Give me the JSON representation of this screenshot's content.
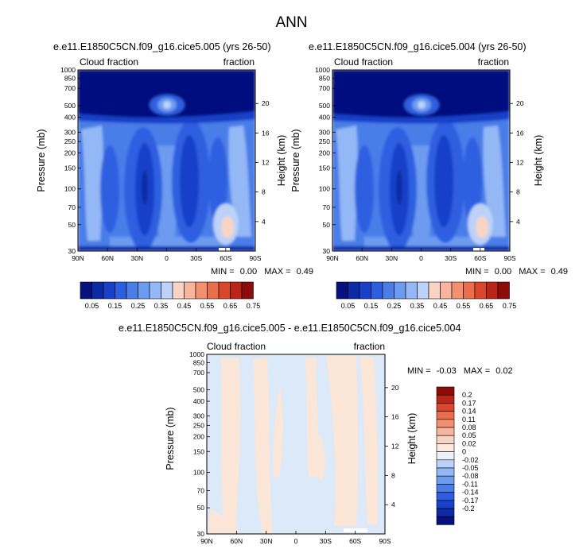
{
  "page_title": "ANN",
  "panel1": {
    "title": "e.e11.E1850C5CN.f09_g16.cice5.005 (yrs 26-50)",
    "left_label": "Cloud fraction",
    "right_label": "fraction",
    "y_axis_label": "Pressure (mb)",
    "y2_axis_label": "Height (km)",
    "min_label": "MIN =",
    "min_value": "0.00",
    "max_label": "MAX =",
    "max_value": "0.49"
  },
  "panel2": {
    "title": "e.e11.E1850C5CN.f09_g16.cice5.004 (yrs 26-50)",
    "left_label": "Cloud fraction",
    "right_label": "fraction",
    "y_axis_label": "Pressure (mb)",
    "y2_axis_label": "Height (km)",
    "min_label": "MIN =",
    "min_value": "0.00",
    "max_label": "MAX =",
    "max_value": "0.49"
  },
  "panel3": {
    "title": "e.e11.E1850C5CN.f09_g16.cice5.005 - e.e11.E1850C5CN.f09_g16.cice5.004",
    "left_label": "Cloud fraction",
    "right_label": "fraction",
    "y_axis_label": "Pressure (mb)",
    "y2_axis_label": "Height (km)",
    "min_label": "MIN =",
    "min_value": "-0.03",
    "max_label": "MAX =",
    "max_value": "0.02"
  },
  "chart_data": [
    {
      "type": "heatmap",
      "panel": "panel1",
      "title": "e.e11.E1850C5CN.f09_g16.cice5.005 (yrs 26-50)",
      "xlabel": "",
      "ylabel": "Pressure (mb)",
      "y2label": "Height (km)",
      "x_ticks": [
        "90N",
        "60N",
        "30N",
        "0",
        "30S",
        "60S",
        "90S"
      ],
      "x_values": [
        90,
        60,
        30,
        0,
        -30,
        -60,
        -90
      ],
      "y_ticks": [
        "30",
        "50",
        "70",
        "100",
        "150",
        "200",
        "250",
        "300",
        "400",
        "500",
        "700",
        "850",
        "1000"
      ],
      "y_values": [
        30,
        50,
        70,
        100,
        150,
        200,
        250,
        300,
        400,
        500,
        700,
        850,
        1000
      ],
      "y2_ticks": [
        "20",
        "16",
        "12",
        "8",
        "4"
      ],
      "y2_values_km": [
        20,
        16,
        12,
        8,
        4
      ],
      "ylim": [
        1000,
        30
      ],
      "min": 0.0,
      "max": 0.49,
      "colorbar_labels": [
        "0.05",
        "0.15",
        "0.25",
        "0.35",
        "0.45",
        "0.55",
        "0.65",
        "0.75"
      ],
      "levels": [
        0.05,
        0.1,
        0.15,
        0.2,
        0.25,
        0.3,
        0.35,
        0.4,
        0.45,
        0.5,
        0.55,
        0.6,
        0.65,
        0.7,
        0.75
      ]
    },
    {
      "type": "heatmap",
      "panel": "panel2",
      "title": "e.e11.E1850C5CN.f09_g16.cice5.004 (yrs 26-50)",
      "xlabel": "",
      "ylabel": "Pressure (mb)",
      "y2label": "Height (km)",
      "x_ticks": [
        "90N",
        "60N",
        "30N",
        "0",
        "30S",
        "60S",
        "90S"
      ],
      "x_values": [
        90,
        60,
        30,
        0,
        -30,
        -60,
        -90
      ],
      "y_ticks": [
        "30",
        "50",
        "70",
        "100",
        "150",
        "200",
        "250",
        "300",
        "400",
        "500",
        "700",
        "850",
        "1000"
      ],
      "y_values": [
        30,
        50,
        70,
        100,
        150,
        200,
        250,
        300,
        400,
        500,
        700,
        850,
        1000
      ],
      "y2_ticks": [
        "20",
        "16",
        "12",
        "8",
        "4"
      ],
      "y2_values_km": [
        20,
        16,
        12,
        8,
        4
      ],
      "ylim": [
        1000,
        30
      ],
      "min": 0.0,
      "max": 0.49,
      "colorbar_labels": [
        "0.05",
        "0.15",
        "0.25",
        "0.35",
        "0.45",
        "0.55",
        "0.65",
        "0.75"
      ],
      "levels": [
        0.05,
        0.1,
        0.15,
        0.2,
        0.25,
        0.3,
        0.35,
        0.4,
        0.45,
        0.5,
        0.55,
        0.6,
        0.65,
        0.7,
        0.75
      ]
    },
    {
      "type": "heatmap",
      "panel": "panel3",
      "title": "e.e11.E1850C5CN.f09_g16.cice5.005 - e.e11.E1850C5CN.f09_g16.cice5.004",
      "xlabel": "",
      "ylabel": "Pressure (mb)",
      "y2label": "Height (km)",
      "x_ticks": [
        "90N",
        "60N",
        "30N",
        "0",
        "30S",
        "60S",
        "90S"
      ],
      "x_values": [
        90,
        60,
        30,
        0,
        -30,
        -60,
        -90
      ],
      "y_ticks": [
        "30",
        "50",
        "70",
        "100",
        "150",
        "200",
        "250",
        "300",
        "400",
        "500",
        "700",
        "850",
        "1000"
      ],
      "y_values": [
        30,
        50,
        70,
        100,
        150,
        200,
        250,
        300,
        400,
        500,
        700,
        850,
        1000
      ],
      "y2_ticks": [
        "20",
        "16",
        "12",
        "8",
        "4"
      ],
      "y2_values_km": [
        20,
        16,
        12,
        8,
        4
      ],
      "ylim": [
        1000,
        30
      ],
      "min": -0.03,
      "max": 0.02,
      "colorbar_labels": [
        "0.2",
        "0.17",
        "0.14",
        "0.11",
        "0.08",
        "0.05",
        "0.02",
        "0",
        "-0.02",
        "-0.05",
        "-0.08",
        "-0.11",
        "-0.14",
        "-0.17",
        "-0.2"
      ]
    }
  ],
  "colors": {
    "abs_scale": [
      "#06107e",
      "#0c2aa5",
      "#1840c8",
      "#2d5ee0",
      "#4a7de8",
      "#6c9bf0",
      "#93b8f5",
      "#bcd2f9",
      "#f9d4c4",
      "#f7b59d",
      "#f2906f",
      "#ea6e4d",
      "#d9462c",
      "#bb2418",
      "#8c0c0a"
    ],
    "diff_scale": [
      "#8c0c0a",
      "#bb2418",
      "#d9462c",
      "#ea6e4d",
      "#f2906f",
      "#f7b59d",
      "#f9d4c4",
      "#fde9dd",
      "#eaf1fc",
      "#bcd2f9",
      "#93b8f5",
      "#6c9bf0",
      "#4a7de8",
      "#2d5ee0",
      "#1840c8",
      "#0c2aa5",
      "#06107e"
    ],
    "diff_field_pos": "#fbe6d7",
    "diff_field_neg": "#dce9f9"
  }
}
